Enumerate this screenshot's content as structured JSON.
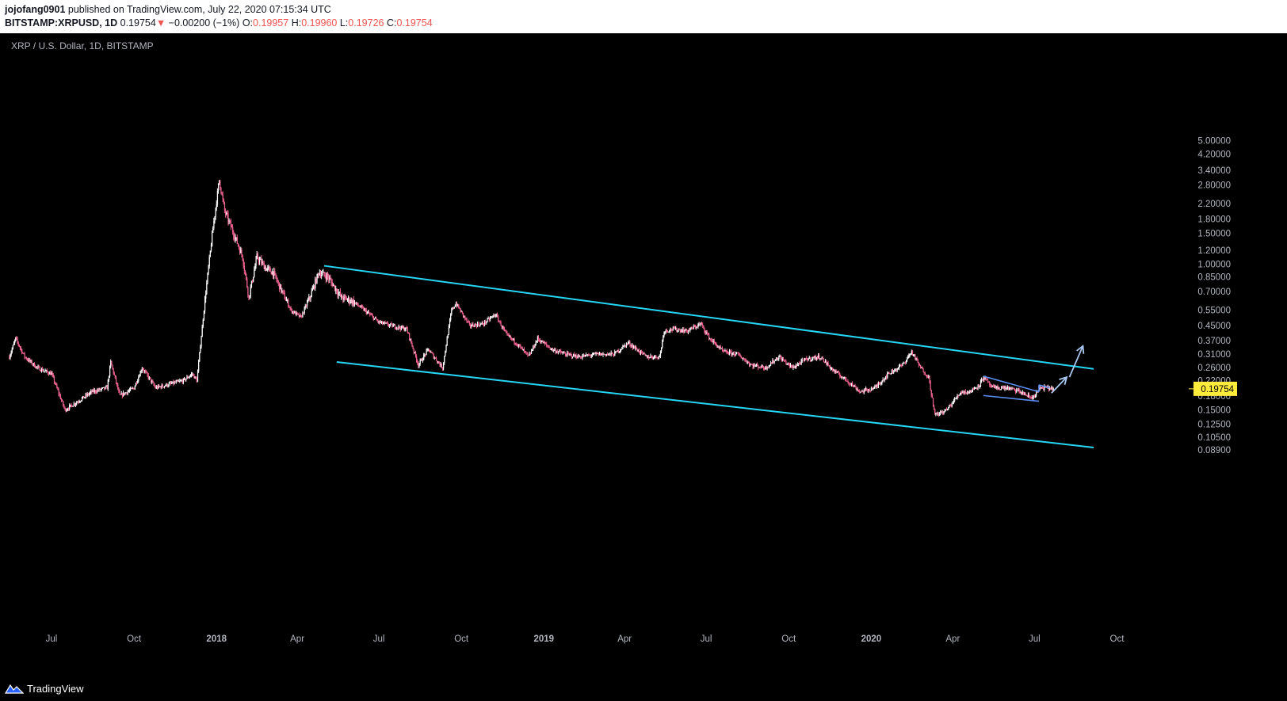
{
  "header": {
    "author": "jojofang0901",
    "published": "published on TradingView.com, July 22, 2020 07:15:34 UTC",
    "symbol": "BITSTAMP:XRPUSD, 1D",
    "last": "0.19754",
    "change": "−0.00200 (−1%)",
    "o_label": "O:",
    "o_value": "0.19957",
    "h_label": "H:",
    "h_value": "0.19960",
    "l_label": "L:",
    "l_value": "0.19726",
    "c_label": "C:",
    "c_value": "0.19754"
  },
  "footer": {
    "brand": "TradingView"
  },
  "colors": {
    "bull": "#ffffff",
    "bear": "#f06292",
    "channel": "#26d6f5",
    "wedge": "#5b8df0",
    "arrow": "#a8c8f0",
    "price_tag": "#ffeb3b"
  },
  "chart_data": {
    "type": "candlestick",
    "title": "XRP / U.S. Dollar, 1D, BITSTAMP",
    "scale": "log",
    "y_ticks": [
      "5.00000",
      "4.20000",
      "3.40000",
      "2.80000",
      "2.20000",
      "1.80000",
      "1.50000",
      "1.20000",
      "1.00000",
      "0.85000",
      "0.70000",
      "0.55000",
      "0.45000",
      "0.37000",
      "0.31000",
      "0.26000",
      "0.22000",
      "0.18000",
      "0.15000",
      "0.12500",
      "0.10500",
      "0.08900"
    ],
    "x_ticks": [
      {
        "label": "Jul",
        "date": "2017-07-01",
        "bold": false
      },
      {
        "label": "Oct",
        "date": "2017-10-01",
        "bold": false
      },
      {
        "label": "2018",
        "date": "2018-01-01",
        "bold": true
      },
      {
        "label": "Apr",
        "date": "2018-04-01",
        "bold": false
      },
      {
        "label": "Jul",
        "date": "2018-07-01",
        "bold": false
      },
      {
        "label": "Oct",
        "date": "2018-10-01",
        "bold": false
      },
      {
        "label": "2019",
        "date": "2019-01-01",
        "bold": true
      },
      {
        "label": "Apr",
        "date": "2019-04-01",
        "bold": false
      },
      {
        "label": "Jul",
        "date": "2019-07-01",
        "bold": false
      },
      {
        "label": "Oct",
        "date": "2019-10-01",
        "bold": false
      },
      {
        "label": "2020",
        "date": "2020-01-01",
        "bold": true
      },
      {
        "label": "Apr",
        "date": "2020-04-01",
        "bold": false
      },
      {
        "label": "Jul",
        "date": "2020-07-01",
        "bold": false
      },
      {
        "label": "Oct",
        "date": "2020-10-01",
        "bold": false
      }
    ],
    "last_price": "0.19754",
    "price_path": [
      [
        "2017-05-15",
        0.3
      ],
      [
        "2017-05-22",
        0.38
      ],
      [
        "2017-06-01",
        0.3
      ],
      [
        "2017-06-15",
        0.26
      ],
      [
        "2017-07-01",
        0.24
      ],
      [
        "2017-07-16",
        0.15
      ],
      [
        "2017-08-01",
        0.17
      ],
      [
        "2017-08-15",
        0.19
      ],
      [
        "2017-09-01",
        0.2
      ],
      [
        "2017-09-05",
        0.28
      ],
      [
        "2017-09-15",
        0.18
      ],
      [
        "2017-10-01",
        0.2
      ],
      [
        "2017-10-10",
        0.26
      ],
      [
        "2017-10-25",
        0.2
      ],
      [
        "2017-11-10",
        0.21
      ],
      [
        "2017-11-25",
        0.22
      ],
      [
        "2017-12-05",
        0.24
      ],
      [
        "2017-12-10",
        0.22
      ],
      [
        "2017-12-20",
        0.7
      ],
      [
        "2017-12-28",
        1.6
      ],
      [
        "2018-01-04",
        3.0
      ],
      [
        "2018-01-10",
        2.0
      ],
      [
        "2018-01-20",
        1.5
      ],
      [
        "2018-01-30",
        1.1
      ],
      [
        "2018-02-06",
        0.65
      ],
      [
        "2018-02-15",
        1.1
      ],
      [
        "2018-02-25",
        0.95
      ],
      [
        "2018-03-05",
        0.9
      ],
      [
        "2018-03-15",
        0.7
      ],
      [
        "2018-03-25",
        0.55
      ],
      [
        "2018-04-05",
        0.5
      ],
      [
        "2018-04-15",
        0.65
      ],
      [
        "2018-04-25",
        0.9
      ],
      [
        "2018-05-05",
        0.85
      ],
      [
        "2018-05-20",
        0.65
      ],
      [
        "2018-06-01",
        0.62
      ],
      [
        "2018-06-15",
        0.55
      ],
      [
        "2018-07-01",
        0.47
      ],
      [
        "2018-07-15",
        0.45
      ],
      [
        "2018-08-01",
        0.43
      ],
      [
        "2018-08-14",
        0.27
      ],
      [
        "2018-08-25",
        0.33
      ],
      [
        "2018-09-10",
        0.26
      ],
      [
        "2018-09-20",
        0.55
      ],
      [
        "2018-09-25",
        0.6
      ],
      [
        "2018-10-10",
        0.45
      ],
      [
        "2018-10-25",
        0.46
      ],
      [
        "2018-11-08",
        0.52
      ],
      [
        "2018-11-20",
        0.4
      ],
      [
        "2018-12-01",
        0.36
      ],
      [
        "2018-12-15",
        0.3
      ],
      [
        "2018-12-25",
        0.38
      ],
      [
        "2019-01-10",
        0.33
      ],
      [
        "2019-01-25",
        0.31
      ],
      [
        "2019-02-10",
        0.3
      ],
      [
        "2019-03-01",
        0.31
      ],
      [
        "2019-03-20",
        0.31
      ],
      [
        "2019-04-05",
        0.36
      ],
      [
        "2019-04-25",
        0.3
      ],
      [
        "2019-05-10",
        0.3
      ],
      [
        "2019-05-15",
        0.42
      ],
      [
        "2019-05-25",
        0.43
      ],
      [
        "2019-06-10",
        0.42
      ],
      [
        "2019-06-25",
        0.46
      ],
      [
        "2019-07-05",
        0.38
      ],
      [
        "2019-07-20",
        0.32
      ],
      [
        "2019-08-05",
        0.31
      ],
      [
        "2019-08-20",
        0.27
      ],
      [
        "2019-09-05",
        0.26
      ],
      [
        "2019-09-20",
        0.3
      ],
      [
        "2019-10-05",
        0.26
      ],
      [
        "2019-10-20",
        0.29
      ],
      [
        "2019-11-05",
        0.3
      ],
      [
        "2019-11-20",
        0.25
      ],
      [
        "2019-12-05",
        0.22
      ],
      [
        "2019-12-20",
        0.19
      ],
      [
        "2020-01-05",
        0.2
      ],
      [
        "2020-01-20",
        0.24
      ],
      [
        "2020-02-05",
        0.27
      ],
      [
        "2020-02-15",
        0.32
      ],
      [
        "2020-02-25",
        0.26
      ],
      [
        "2020-03-05",
        0.23
      ],
      [
        "2020-03-12",
        0.14
      ],
      [
        "2020-03-25",
        0.15
      ],
      [
        "2020-04-10",
        0.19
      ],
      [
        "2020-04-20",
        0.19
      ],
      [
        "2020-05-01",
        0.21
      ],
      [
        "2020-05-05",
        0.23
      ],
      [
        "2020-05-15",
        0.2
      ],
      [
        "2020-06-01",
        0.2
      ],
      [
        "2020-06-15",
        0.19
      ],
      [
        "2020-06-28",
        0.175
      ],
      [
        "2020-07-08",
        0.2
      ],
      [
        "2020-07-15",
        0.2
      ],
      [
        "2020-07-22",
        0.198
      ]
    ],
    "drawings": {
      "channel_upper": [
        [
          "2018-05-01",
          0.98
        ],
        [
          "2020-09-05",
          0.256
        ]
      ],
      "channel_lower": [
        [
          "2018-05-15",
          0.28
        ],
        [
          "2020-09-05",
          0.092
        ]
      ],
      "wedge_upper": [
        [
          "2020-05-05",
          0.233
        ],
        [
          "2020-07-06",
          0.19
        ]
      ],
      "wedge_lower": [
        [
          "2020-05-05",
          0.181
        ],
        [
          "2020-07-06",
          0.168
        ]
      ],
      "flag_top": [
        [
          "2020-07-06",
          0.208
        ],
        [
          "2020-07-18",
          0.2
        ]
      ],
      "arrow_1": [
        [
          "2020-07-20",
          0.187
        ],
        [
          "2020-08-06",
          0.23
        ]
      ],
      "arrow_2": [
        [
          "2020-08-09",
          0.23
        ],
        [
          "2020-08-24",
          0.345
        ]
      ]
    }
  }
}
